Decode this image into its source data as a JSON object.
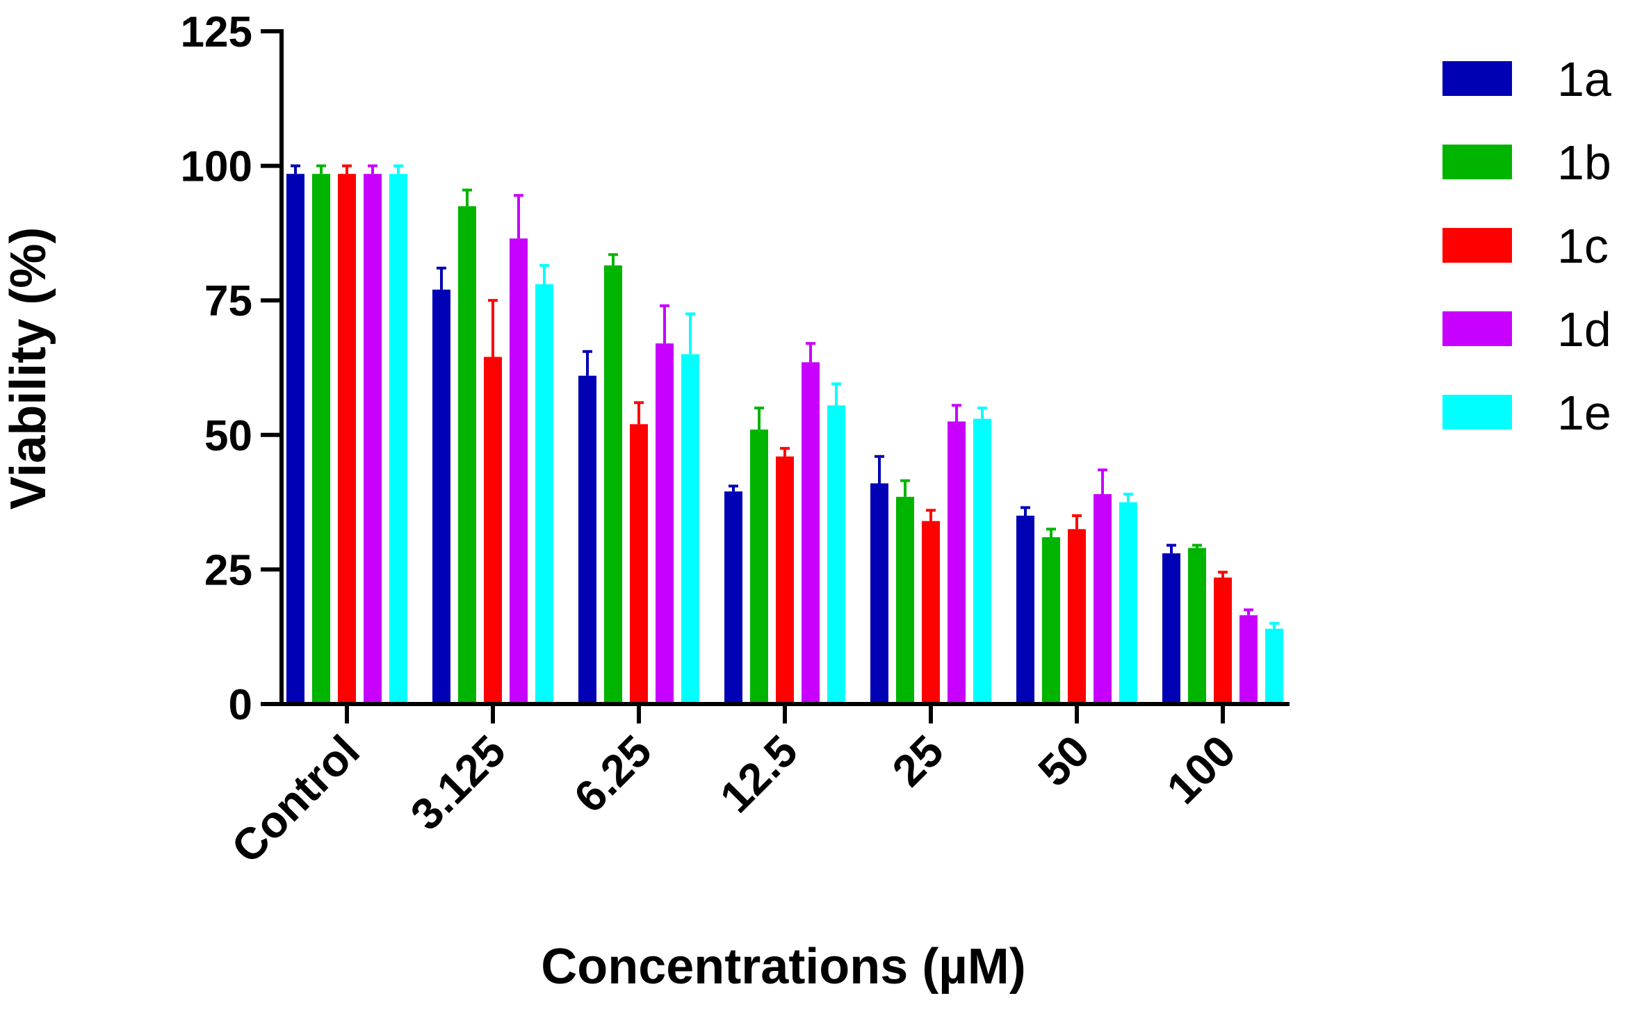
{
  "chart_data": {
    "type": "bar",
    "title": "",
    "xlabel": "Concentrations (µM)",
    "ylabel": "Viability (%)",
    "ylim": [
      0,
      125
    ],
    "yticks": [
      0,
      25,
      50,
      75,
      100,
      125
    ],
    "categories": [
      "Control",
      "3.125",
      "6.25",
      "12.5",
      "25",
      "50",
      "100"
    ],
    "series": [
      {
        "name": "1a",
        "color": "#0000B4",
        "values": [
          98.5,
          77,
          61,
          39.5,
          41,
          35,
          28
        ],
        "errors": [
          1.5,
          4,
          4.5,
          1,
          5,
          1.5,
          1.5
        ]
      },
      {
        "name": "1b",
        "color": "#00B400",
        "values": [
          98.5,
          92.5,
          81.5,
          51,
          38.5,
          31,
          29
        ],
        "errors": [
          1.5,
          3,
          2,
          4,
          3,
          1.5,
          0.5
        ]
      },
      {
        "name": "1c",
        "color": "#FF0000",
        "values": [
          98.5,
          64.5,
          52,
          46,
          34,
          32.5,
          23.5
        ],
        "errors": [
          1.5,
          10.5,
          4,
          1.5,
          2,
          2.5,
          1
        ]
      },
      {
        "name": "1d",
        "color": "#C800FF",
        "values": [
          98.5,
          86.5,
          67,
          63.5,
          52.5,
          39,
          16.5
        ],
        "errors": [
          1.5,
          8,
          7,
          3.5,
          3,
          4.5,
          1
        ]
      },
      {
        "name": "1e",
        "color": "#00FFFF",
        "values": [
          98.5,
          78,
          65,
          55.5,
          53,
          37.5,
          14
        ],
        "errors": [
          1.5,
          3.5,
          7.5,
          4,
          2,
          1.5,
          1
        ]
      }
    ],
    "grid": false,
    "legend_position": "top-right"
  }
}
